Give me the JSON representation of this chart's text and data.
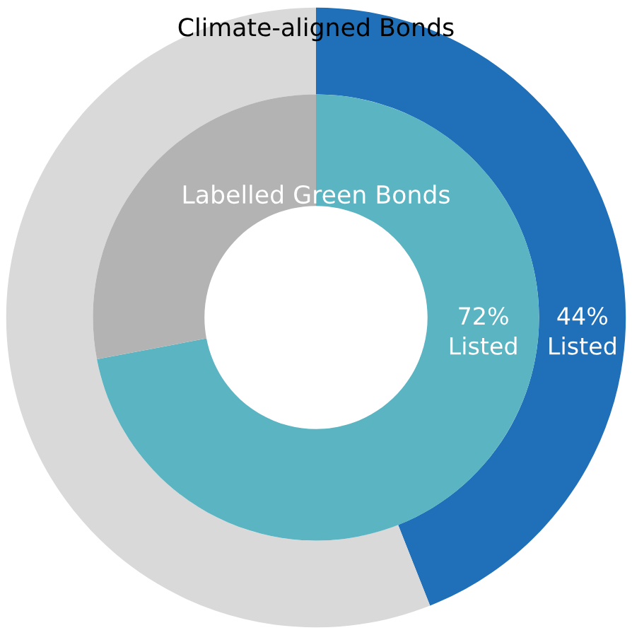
{
  "chart_data": {
    "type": "donut",
    "categories": [
      "Listed",
      null
    ],
    "series": [
      {
        "name": "Climate-aligned Bonds",
        "values": [
          44,
          56
        ],
        "colors": [
          "#1f70b8",
          "#d9d9d9"
        ],
        "value_labels": [
          "44%",
          null
        ]
      },
      {
        "name": "Labelled Green Bonds",
        "values": [
          72,
          28
        ],
        "colors": [
          "#5ab4c2",
          "#b3b3b3"
        ],
        "value_labels": [
          "72%",
          null
        ]
      }
    ]
  }
}
